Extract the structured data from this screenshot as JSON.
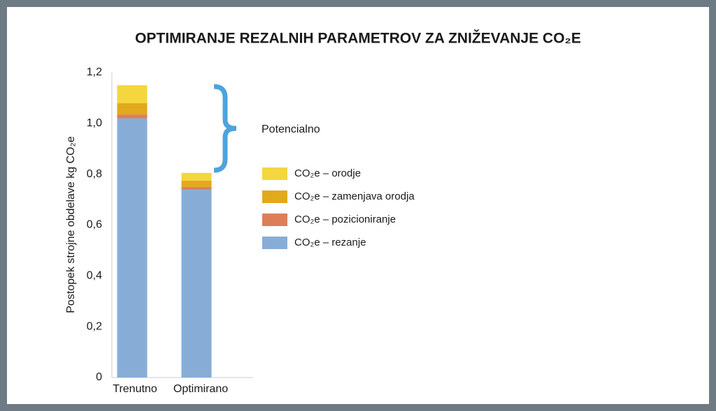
{
  "chart_data": {
    "type": "stacked-bar",
    "title": "OPTIMIRANJE REZALNIH PARAMETROV ZA ZNIŽEVANJE CO₂E",
    "y_label": "Postopek strojne obdelave kg CO₂e",
    "annotation": "Potencialno",
    "categories": [
      "Trenutno",
      "Optimirano"
    ],
    "series": [
      {
        "name": "CO₂e – orodje",
        "color": "#f4d63f",
        "values": [
          0.07,
          0.03
        ]
      },
      {
        "name": "CO₂e – zamenjava orodja",
        "color": "#e2a91d",
        "values": [
          0.045,
          0.025
        ]
      },
      {
        "name": "CO₂e – pozicioniranje",
        "color": "#dc7f58",
        "values": [
          0.015,
          0.01
        ]
      },
      {
        "name": "CO₂e – rezanje",
        "color": "#87add7",
        "values": [
          1.02,
          0.74
        ]
      }
    ],
    "ylim": [
      0,
      1.2
    ],
    "yticks": [
      0,
      {
        "value": 0.2,
        "label": "0,2"
      },
      {
        "value": 0.4,
        "label": "0,4"
      },
      {
        "value": 0.6,
        "label": "0,6"
      },
      {
        "value": 0.8,
        "label": "0,8"
      },
      {
        "value": 1.0,
        "label": "1,0"
      },
      {
        "value": 1.2,
        "label": "1,2"
      }
    ]
  }
}
